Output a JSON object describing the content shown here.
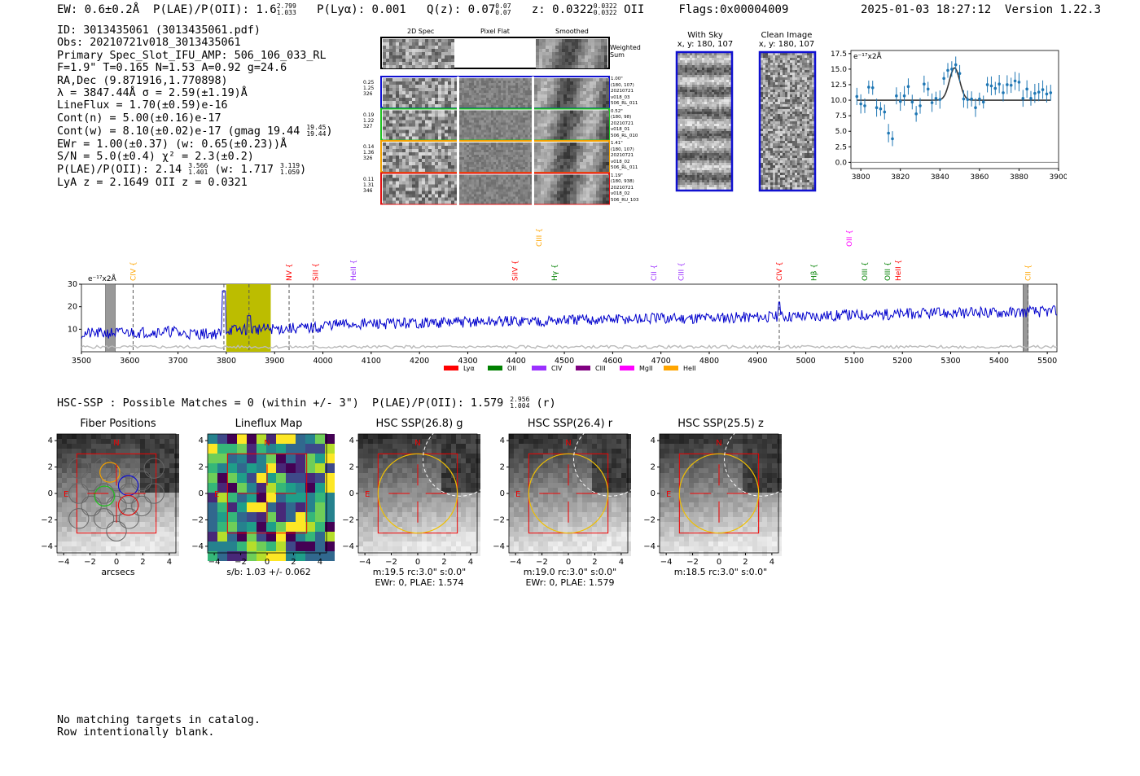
{
  "header": {
    "ew": "EW: 0.6±0.2Å",
    "plae_label": "P(LAE)/P(OII): 1.6",
    "plae_hi": "2.799",
    "plae_lo": "1.033",
    "plya": "P(Lyα): 0.001",
    "qz_label": "Q(z): 0.07",
    "qz_hi": "0.07",
    "qz_lo": "0.07",
    "z_label": "z: 0.0322",
    "z_hi": "0.0322",
    "z_lo": "0.0322",
    "z_line": "OII",
    "flags": "Flags:0x00004009",
    "datetime": "2025-01-03 18:27:12",
    "version": "Version 1.22.3"
  },
  "info": {
    "id": "ID: 3013435061 (3013435061.pdf)",
    "obs": "Obs: 20210721v018_3013435061",
    "primary": "Primary Spec_Slot_IFU_AMP: 506_106_033_RL",
    "fiber": "F=1.9\"  T=0.165  N=1.53  A=0.92  g=24.6",
    "radec": "RA,Dec (9.871916,1.770898)",
    "lambda": "λ = 3847.44Å  σ = 2.59(±1.19)Å",
    "lineflux": "LineFlux = 1.70(±0.59)e-16",
    "contn": "Cont(n) = 5.00(±0.16)e-17",
    "contw_label": "Cont(w) = 8.10(±0.02)e-17 (gmag 19.44",
    "contw_hi": "19.45",
    "contw_lo": "19.44",
    "contw_tail": ")",
    "ewr": "EWr = 1.00(±0.37) (w: 0.65(±0.23))Å",
    "sn": "S/N = 5.0(±0.4)  χ² = 2.3(±0.2)",
    "plae_label": "P(LAE)/P(OII): 2.14",
    "plae_hi": "3.566",
    "plae_lo": "1.401",
    "plae_w": "(w: 1.717",
    "plae_w_hi": "3.119",
    "plae_w_lo": "1.059",
    "plae_tail": ")",
    "lya": "LyA z = 2.1649   OII z = 0.0321"
  },
  "cutouts": {
    "col_headers": [
      "2D Spec",
      "Pixel Flat",
      "Smoothed"
    ],
    "weighted": "Weighted Sum",
    "rows": [
      {
        "vals": [
          "0.25",
          "1.25",
          "326"
        ],
        "meta": [
          "1.00\"",
          "(180, 107)",
          "20210721",
          "v018_03",
          "506_RL_011"
        ],
        "color": "#1010d0"
      },
      {
        "vals": [
          "0.19",
          "1.22",
          "327"
        ],
        "meta": [
          "0.52\"",
          "(180, 98)",
          "20210721",
          "v018_01",
          "506_RL_010"
        ],
        "color": "#20c020"
      },
      {
        "vals": [
          "0.14",
          "1.36",
          "326"
        ],
        "meta": [
          "1.41\"",
          "(180, 107)",
          "20210721",
          "v018_02",
          "506_RL_011"
        ],
        "color": "#f0a000"
      },
      {
        "vals": [
          "0.11",
          "1.31",
          "346"
        ],
        "meta": [
          "1.19\"",
          "(180, 938)",
          "20210721",
          "v018_02",
          "506_RU_103"
        ],
        "color": "#e01010"
      }
    ]
  },
  "sky": {
    "with_sky_title": "With Sky",
    "with_sky_coords": "x, y: 180, 107",
    "clean_title": "Clean Image",
    "clean_coords": "x, y: 180, 107"
  },
  "zoom_plot": {
    "unit": "e⁻¹⁷x2Å",
    "xticks": [
      "3800",
      "3820",
      "3840",
      "3860",
      "3880",
      "3900"
    ],
    "yticks": [
      "0.0",
      "2.5",
      "5.0",
      "7.5",
      "10.0",
      "12.5",
      "15.0",
      "17.5"
    ]
  },
  "chart_data": [
    {
      "type": "scatter",
      "title": "",
      "xlabel": "",
      "ylabel": "e⁻¹⁷x2Å",
      "xlim": [
        3795,
        3900
      ],
      "ylim": [
        -1,
        18
      ],
      "x": [
        3798,
        3800,
        3802,
        3804,
        3806,
        3808,
        3810,
        3812,
        3814,
        3816,
        3818,
        3820,
        3822,
        3824,
        3826,
        3828,
        3830,
        3832,
        3834,
        3836,
        3838,
        3840,
        3842,
        3844,
        3846,
        3848,
        3850,
        3852,
        3854,
        3856,
        3858,
        3860,
        3862,
        3864,
        3866,
        3868,
        3870,
        3872,
        3874,
        3876,
        3878,
        3880,
        3882,
        3884,
        3886,
        3888,
        3890,
        3892,
        3894,
        3896
      ],
      "y": [
        10.6,
        9.4,
        9.1,
        12.1,
        12.0,
        8.8,
        8.6,
        8.1,
        4.7,
        3.8,
        10.7,
        9.8,
        10.7,
        12.2,
        9.7,
        7.8,
        9.1,
        12.6,
        11.8,
        9.6,
        10.3,
        10.1,
        13.5,
        14.8,
        15.0,
        15.7,
        14.3,
        10.2,
        10.1,
        10.2,
        8.8,
        10.2,
        9.7,
        12.5,
        12.3,
        11.9,
        12.6,
        11.2,
        12.5,
        12.4,
        13.1,
        12.9,
        10.3,
        11.8,
        10.3,
        11.1,
        11.3,
        11.7,
        11.0,
        11.2
      ],
      "fit": {
        "continuum": 10.0,
        "peak": 15.2,
        "center": 3847.4,
        "sigma": 2.59
      }
    },
    {
      "type": "line",
      "title": "",
      "ylabel": "e⁻¹⁷x2Å",
      "xlim": [
        3500,
        5520
      ],
      "ylim": [
        0,
        30
      ],
      "xticks": [
        3500,
        3600,
        3700,
        3800,
        3900,
        4000,
        4100,
        4200,
        4300,
        4400,
        4500,
        4600,
        4700,
        4800,
        4900,
        5000,
        5100,
        5200,
        5300,
        5400,
        5500
      ],
      "yticks": [
        10,
        20,
        30
      ],
      "legend": [
        "Lyα",
        "OII",
        "CIV",
        "CIII",
        "MgII",
        "HeII"
      ],
      "legend_colors": [
        "#ff0000",
        "#008000",
        "#9b30ff",
        "#800080",
        "#ff00ff",
        "#ffa500"
      ],
      "lines": [
        {
          "name": "CIV",
          "x": 3607,
          "color": "#ffa500",
          "row": 0
        },
        {
          "name": "NV",
          "x": 3930,
          "color": "#ff0000",
          "row": 0
        },
        {
          "name": "SiII",
          "x": 3985,
          "color": "#ff0000",
          "row": 0
        },
        {
          "name": "HeII",
          "x": 4063,
          "color": "#9b30ff",
          "row": 0
        },
        {
          "name": "SiIV",
          "x": 4398,
          "color": "#ff0000",
          "row": 0
        },
        {
          "name": "CIII",
          "x": 4448,
          "color": "#ffa500",
          "row": 1
        },
        {
          "name": "Hγ",
          "x": 4480,
          "color": "#008000",
          "row": 0
        },
        {
          "name": "CII",
          "x": 4685,
          "color": "#9b30ff",
          "row": 0
        },
        {
          "name": "CIII",
          "x": 4742,
          "color": "#9b30ff",
          "row": 0
        },
        {
          "name": "CIV",
          "x": 4945,
          "color": "#ff0000",
          "row": 0
        },
        {
          "name": "Hβ",
          "x": 5017,
          "color": "#008000",
          "row": 0
        },
        {
          "name": "OII",
          "x": 5090,
          "color": "#ff00ff",
          "row": 1
        },
        {
          "name": "OIII",
          "x": 5122,
          "color": "#008000",
          "row": 0
        },
        {
          "name": "OIII",
          "x": 5169,
          "color": "#008000",
          "row": 0
        },
        {
          "name": "HeII",
          "x": 5191,
          "color": "#ff0000",
          "row": 0
        },
        {
          "name": "CII",
          "x": 5460,
          "color": "#ffa500",
          "row": 0
        }
      ],
      "highlight": [
        3800,
        3892
      ],
      "dashed": [
        3607,
        3795,
        3847,
        3930,
        3980,
        4945,
        5460
      ]
    }
  ],
  "hsc": {
    "title": "HSC-SSP : Possible Matches = 0 (within +/- 3\")",
    "plae_label": "P(LAE)/P(OII): 1.579",
    "plae_hi": "2.956",
    "plae_lo": "1.004",
    "band": "(r)",
    "panels": [
      {
        "title": "Fiber Positions",
        "caption1": "arcsecs",
        "caption2": ""
      },
      {
        "title": "Lineflux Map",
        "caption1": "s/b: 1.03 +/- 0.062",
        "caption2": ""
      },
      {
        "title": "HSC SSP(26.8) g",
        "caption1": "m:19.5 rc:3.0\"  s:0.0\"",
        "caption2": "EWr: 0, PLAE: 1.574"
      },
      {
        "title": "HSC SSP(26.4) r",
        "caption1": "m:19.0 rc:3.0\"  s:0.0\"",
        "caption2": "EWr: 0, PLAE: 1.579"
      },
      {
        "title": "HSC SSP(25.5) z",
        "caption1": "m:18.5 rc:3.0\"  s:0.0\"",
        "caption2": ""
      }
    ],
    "xticks": [
      "−4",
      "−2",
      "0",
      "2",
      "4"
    ],
    "yticks": [
      "4",
      "2",
      "0",
      "−2",
      "−4"
    ],
    "north": "N",
    "east": "E"
  },
  "footer": {
    "line1": "No matching targets in catalog.",
    "line2": "Row intentionally blank."
  }
}
